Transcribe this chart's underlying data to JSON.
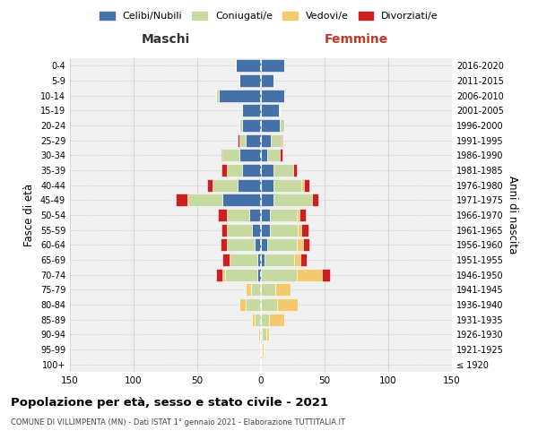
{
  "age_groups": [
    "100+",
    "95-99",
    "90-94",
    "85-89",
    "80-84",
    "75-79",
    "70-74",
    "65-69",
    "60-64",
    "55-59",
    "50-54",
    "45-49",
    "40-44",
    "35-39",
    "30-34",
    "25-29",
    "20-24",
    "15-19",
    "10-14",
    "5-9",
    "0-4"
  ],
  "birth_years": [
    "≤ 1920",
    "1921-1925",
    "1926-1930",
    "1931-1935",
    "1936-1940",
    "1941-1945",
    "1946-1950",
    "1951-1955",
    "1956-1960",
    "1961-1965",
    "1966-1970",
    "1971-1975",
    "1976-1980",
    "1981-1985",
    "1986-1990",
    "1991-1995",
    "1996-2000",
    "2001-2005",
    "2006-2010",
    "2011-2015",
    "2016-2020"
  ],
  "males": {
    "celibi": [
      0,
      0,
      0,
      0,
      0,
      0,
      3,
      3,
      5,
      7,
      9,
      30,
      18,
      15,
      17,
      12,
      15,
      15,
      33,
      17,
      20
    ],
    "coniugati": [
      0,
      0,
      1,
      5,
      12,
      8,
      25,
      22,
      22,
      20,
      18,
      28,
      20,
      12,
      13,
      5,
      2,
      0,
      2,
      0,
      0
    ],
    "vedovi": [
      0,
      0,
      1,
      2,
      5,
      4,
      2,
      0,
      0,
      0,
      0,
      0,
      0,
      0,
      0,
      0,
      0,
      0,
      0,
      0,
      0
    ],
    "divorziati": [
      0,
      0,
      0,
      0,
      0,
      0,
      5,
      5,
      5,
      4,
      7,
      9,
      4,
      4,
      1,
      1,
      0,
      0,
      0,
      0,
      0
    ]
  },
  "females": {
    "nubili": [
      0,
      0,
      1,
      0,
      0,
      0,
      0,
      3,
      5,
      7,
      7,
      10,
      10,
      10,
      5,
      8,
      15,
      14,
      18,
      10,
      18
    ],
    "coniugate": [
      0,
      1,
      3,
      6,
      13,
      11,
      28,
      23,
      23,
      22,
      21,
      30,
      22,
      15,
      10,
      8,
      3,
      1,
      0,
      0,
      0
    ],
    "vedove": [
      0,
      1,
      2,
      12,
      16,
      12,
      20,
      5,
      5,
      3,
      2,
      0,
      2,
      0,
      0,
      0,
      0,
      0,
      0,
      0,
      0
    ],
    "divorziate": [
      0,
      0,
      0,
      0,
      0,
      0,
      6,
      5,
      5,
      5,
      5,
      5,
      4,
      3,
      2,
      1,
      0,
      0,
      0,
      0,
      0
    ]
  },
  "colors": {
    "celibi": "#4472a8",
    "coniugati": "#c5d9a0",
    "vedovi": "#f5c96e",
    "divorziati": "#cc1f1f"
  },
  "bg_color": "#f0f0f0",
  "grid_color": "#d0d0d0",
  "title": "Popolazione per età, sesso e stato civile - 2021",
  "subtitle": "COMUNE DI VILLIMPENTA (MN) - Dati ISTAT 1° gennaio 2021 - Elaborazione TUTTITALIA.IT",
  "xlabel_left": "Maschi",
  "xlabel_right": "Femmine",
  "ylabel_left": "Fasce di età",
  "ylabel_right": "Anni di nascita",
  "xlim": 150,
  "legend_labels": [
    "Celibi/Nubili",
    "Coniugati/e",
    "Vedovi/e",
    "Divorziati/e"
  ]
}
